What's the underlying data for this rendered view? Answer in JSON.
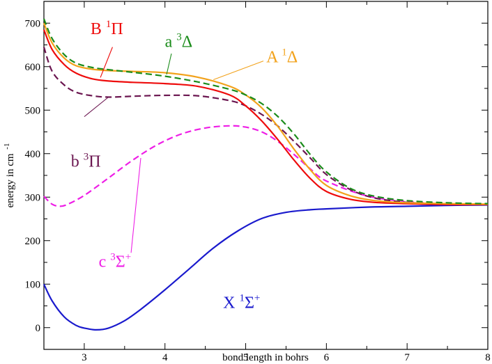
{
  "chart_data": {
    "type": "line",
    "xlabel": "bond length in bohrs",
    "ylabel": "energy in cm",
    "ylabel_sup": "-1",
    "xlim": [
      2.5,
      8
    ],
    "ylim": [
      -50,
      750
    ],
    "xticks": [
      3,
      4,
      5,
      6,
      7,
      8
    ],
    "yticks": [
      0,
      100,
      200,
      300,
      400,
      500,
      600,
      700
    ],
    "grid": false,
    "series": [
      {
        "name": "X 1Σ+",
        "label": {
          "main1": "X",
          "sup1": "1",
          "main2": "Σ",
          "sup2": "+"
        },
        "color": "#1a1acd",
        "dash": false,
        "x": [
          2.5,
          2.6,
          2.75,
          2.9,
          3.0,
          3.15,
          3.3,
          3.5,
          3.7,
          4.0,
          4.3,
          4.6,
          4.9,
          5.2,
          5.5,
          5.8,
          6.0,
          6.5,
          7.0,
          7.5,
          8.0
        ],
        "y": [
          100,
          62,
          25,
          5,
          -1,
          -5,
          -1,
          16,
          42,
          87,
          135,
          183,
          222,
          251,
          265,
          271,
          273,
          277,
          279,
          281,
          282
        ]
      },
      {
        "name": "c 3Σ+",
        "label": {
          "main1": "c",
          "sup1": "3",
          "main2": "Σ",
          "sup2": "+"
        },
        "color": "#ee1ee6",
        "dash": true,
        "x": [
          2.5,
          2.6,
          2.7,
          2.8,
          3.0,
          3.3,
          3.6,
          3.9,
          4.2,
          4.5,
          4.8,
          5.0,
          5.2,
          5.4,
          5.6,
          5.8,
          6.0,
          6.5,
          7.0,
          7.5,
          8.0
        ],
        "y": [
          302,
          284,
          279,
          284,
          304,
          344,
          385,
          420,
          445,
          459,
          464,
          461,
          450,
          428,
          398,
          365,
          337,
          303,
          290,
          285,
          283
        ]
      },
      {
        "name": "b 3Π",
        "label": {
          "main1": "b",
          "sup1": "3",
          "main2": "Π",
          "sup2": ""
        },
        "color": "#6b1650",
        "dash": true,
        "x": [
          2.5,
          2.6,
          2.75,
          2.9,
          3.1,
          3.3,
          3.6,
          4.0,
          4.4,
          4.8,
          5.0,
          5.2,
          5.4,
          5.6,
          5.8,
          6.0,
          6.3,
          6.6,
          7.0,
          7.5,
          8.0
        ],
        "y": [
          645,
          590,
          558,
          541,
          533,
          530,
          532,
          534,
          533,
          522,
          510,
          490,
          463,
          428,
          390,
          352,
          317,
          298,
          288,
          284,
          283
        ]
      },
      {
        "name": "B 1Π",
        "label": {
          "main1": "B",
          "sup1": "1",
          "main2": "Π",
          "sup2": ""
        },
        "color": "#ee0c0c",
        "dash": false,
        "x": [
          2.5,
          2.6,
          2.75,
          2.9,
          3.1,
          3.3,
          3.6,
          4.0,
          4.4,
          4.8,
          5.0,
          5.2,
          5.4,
          5.6,
          5.8,
          6.0,
          6.3,
          6.6,
          7.0,
          7.5,
          8.0
        ],
        "y": [
          685,
          640,
          605,
          585,
          572,
          567,
          564,
          561,
          555,
          535,
          510,
          475,
          432,
          385,
          343,
          313,
          295,
          288,
          285,
          283,
          283
        ]
      },
      {
        "name": "A 1Δ",
        "label": {
          "main1": "A",
          "sup1": "1",
          "main2": "Δ",
          "sup2": ""
        },
        "color": "#f2a21b",
        "dash": false,
        "x": [
          2.5,
          2.6,
          2.75,
          2.9,
          3.1,
          3.3,
          3.6,
          4.0,
          4.4,
          4.8,
          5.0,
          5.2,
          5.4,
          5.6,
          5.8,
          6.0,
          6.3,
          6.6,
          7.0,
          7.5,
          8.0
        ],
        "y": [
          700,
          655,
          620,
          602,
          594,
          591,
          589,
          586,
          576,
          555,
          535,
          505,
          462,
          410,
          363,
          327,
          303,
          292,
          287,
          285,
          284
        ]
      },
      {
        "name": "a 3Δ",
        "label": {
          "main1": "a",
          "sup1": "3",
          "main2": "Δ",
          "sup2": ""
        },
        "color": "#1b8c1b",
        "dash": true,
        "x": [
          2.5,
          2.6,
          2.75,
          2.9,
          3.1,
          3.3,
          3.6,
          4.0,
          4.4,
          4.8,
          5.0,
          5.2,
          5.4,
          5.6,
          5.8,
          6.0,
          6.3,
          6.6,
          7.0,
          7.5,
          8.0
        ],
        "y": [
          710,
          665,
          628,
          608,
          598,
          593,
          587,
          578,
          565,
          548,
          535,
          515,
          485,
          445,
          398,
          358,
          320,
          302,
          292,
          287,
          285
        ]
      }
    ],
    "annotations": [
      {
        "series": 3,
        "text_x": 3.28,
        "text_y": 675,
        "anchor": "middle",
        "leader": [
          [
            3.35,
            645
          ],
          [
            3.2,
            575
          ]
        ]
      },
      {
        "series": 5,
        "text_x": 4.17,
        "text_y": 645,
        "anchor": "middle",
        "leader": [
          [
            4.08,
            630
          ],
          [
            4.02,
            582
          ]
        ]
      },
      {
        "series": 4,
        "text_x": 5.45,
        "text_y": 610,
        "anchor": "middle",
        "leader": [
          [
            5.22,
            613
          ],
          [
            4.6,
            570
          ]
        ]
      },
      {
        "series": 2,
        "text_x": 3.02,
        "text_y": 370,
        "anchor": "middle",
        "leader": [
          [
            3.0,
            485
          ],
          [
            3.3,
            530
          ]
        ]
      },
      {
        "series": 1,
        "text_x": 3.38,
        "text_y": 140,
        "anchor": "middle",
        "leader": [
          [
            3.58,
            172
          ],
          [
            3.7,
            390
          ]
        ]
      },
      {
        "series": 0,
        "text_x": 4.95,
        "text_y": 45,
        "anchor": "middle",
        "leader": null
      }
    ]
  }
}
